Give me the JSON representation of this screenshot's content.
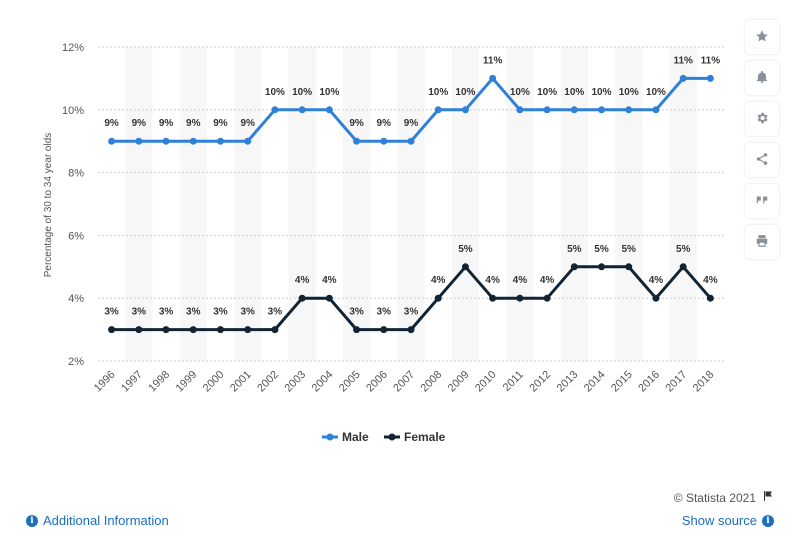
{
  "chart_data": {
    "type": "line",
    "ylabel": "Percentage of 30 to 34 year olds",
    "xlabel": "",
    "ylim": [
      2,
      12
    ],
    "yticks": [
      "2%",
      "4%",
      "6%",
      "8%",
      "10%",
      "12%"
    ],
    "ytick_values": [
      2,
      4,
      6,
      8,
      10,
      12
    ],
    "categories": [
      "1996",
      "1997",
      "1998",
      "1999",
      "2000",
      "2001",
      "2002",
      "2003",
      "2004",
      "2005",
      "2006",
      "2007",
      "2008",
      "2009",
      "2010",
      "2011",
      "2012",
      "2013",
      "2014",
      "2015",
      "2016",
      "2017",
      "2018"
    ],
    "series": [
      {
        "name": "Male",
        "color": "#2f80d8",
        "values": [
          9,
          9,
          9,
          9,
          9,
          9,
          10,
          10,
          10,
          9,
          9,
          9,
          10,
          10,
          11,
          10,
          10,
          10,
          10,
          10,
          10,
          11,
          11
        ],
        "labels": [
          "9%",
          "9%",
          "9%",
          "9%",
          "9%",
          "9%",
          "10%",
          "10%",
          "10%",
          "9%",
          "9%",
          "9%",
          "10%",
          "10%",
          "11%",
          "10%",
          "10%",
          "10%",
          "10%",
          "10%",
          "10%",
          "11%",
          "11%"
        ]
      },
      {
        "name": "Female",
        "color": "#102436",
        "values": [
          3,
          3,
          3,
          3,
          3,
          3,
          3,
          4,
          4,
          3,
          3,
          3,
          4,
          5,
          4,
          4,
          4,
          5,
          5,
          5,
          4,
          5,
          4
        ],
        "labels": [
          "3%",
          "3%",
          "3%",
          "3%",
          "3%",
          "3%",
          "3%",
          "4%",
          "4%",
          "3%",
          "3%",
          "3%",
          "4%",
          "5%",
          "4%",
          "4%",
          "4%",
          "5%",
          "5%",
          "5%",
          "4%",
          "5%",
          "4%"
        ]
      }
    ],
    "grid": true,
    "legend_position": "bottom-center"
  },
  "toolbar": {
    "icons": [
      "star-icon",
      "bell-icon",
      "gear-icon",
      "share-icon",
      "quote-icon",
      "print-icon"
    ]
  },
  "footer": {
    "additional_info": "Additional Information",
    "copyright": "© Statista 2021",
    "show_source": "Show source"
  }
}
